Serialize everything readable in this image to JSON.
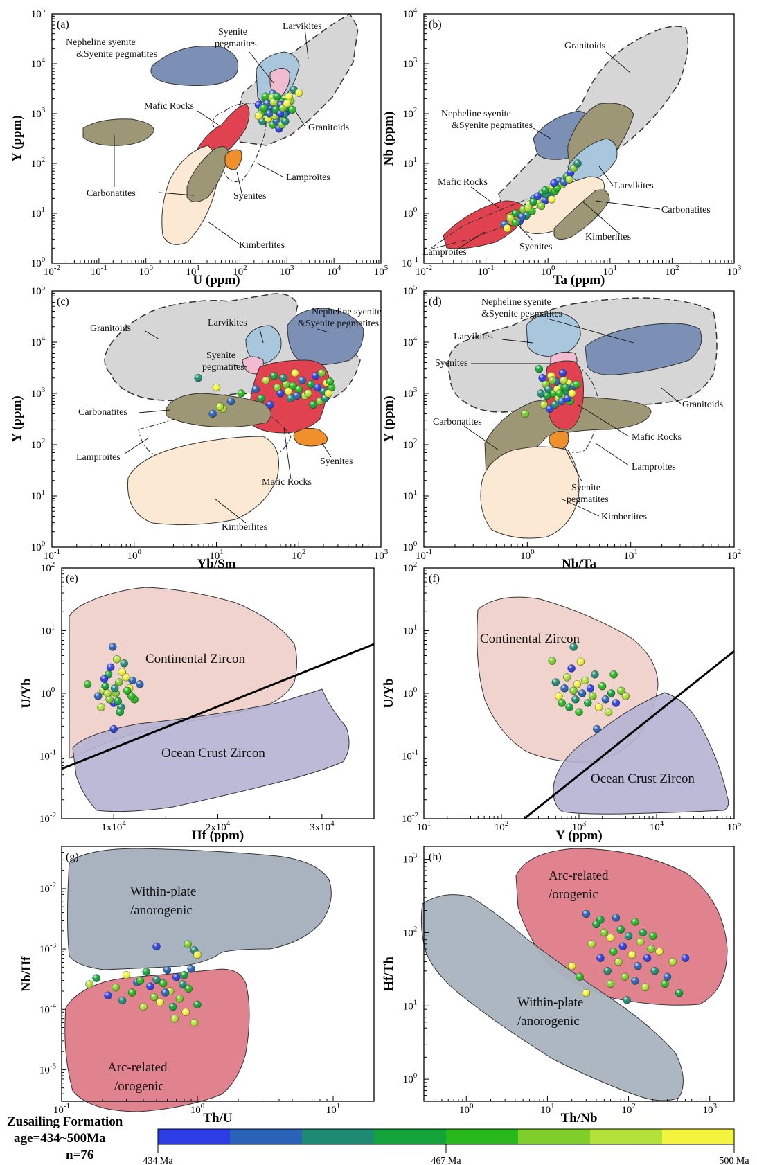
{
  "figure": {
    "legend": {
      "line1": "Zusailing Formation",
      "line2": "age=434~500Ma",
      "line3": "n=76",
      "colorbar_ticks": [
        "434 Ma",
        "467 Ma",
        "500 Ma"
      ],
      "colorbar_colors": [
        "#2c3de6",
        "#2a62b8",
        "#1f8a74",
        "#13a33a",
        "#28b81e",
        "#7fce2c",
        "#b4e03a",
        "#f4f33d"
      ]
    }
  },
  "chart_data": [
    {
      "panel": "(a)",
      "type": "scatter",
      "xscale": "log",
      "yscale": "log",
      "xlabel": "U (ppm)",
      "ylabel": "Y (ppm)",
      "xlim": [
        0.01,
        100000
      ],
      "ylim": [
        1,
        100000
      ],
      "xticklabels": [
        "10-2",
        "10-1",
        "100",
        "101",
        "102",
        "103",
        "104",
        "105"
      ],
      "yticklabels": [
        "100",
        "101",
        "102",
        "103",
        "104",
        "105"
      ],
      "regions": [
        "Nepheline syenite &Syenite pegmatites",
        "Syenite pegmatites",
        "Larvikites",
        "Mafic Rocks",
        "Granitoids",
        "Carbonatites",
        "Lamproites",
        "Syenites",
        "Kimberlites"
      ],
      "points": [
        [
          250,
          1500
        ],
        [
          300,
          1200
        ],
        [
          350,
          2000
        ],
        [
          400,
          1800
        ],
        [
          450,
          1000
        ],
        [
          500,
          2500
        ],
        [
          600,
          1500
        ],
        [
          700,
          900
        ],
        [
          800,
          1200
        ],
        [
          900,
          2000
        ],
        [
          300,
          700
        ],
        [
          400,
          800
        ],
        [
          500,
          600
        ],
        [
          600,
          700
        ],
        [
          700,
          1400
        ],
        [
          800,
          1700
        ],
        [
          1000,
          1100
        ],
        [
          1200,
          1800
        ],
        [
          1400,
          3000
        ],
        [
          1800,
          2600
        ],
        [
          350,
          2200
        ],
        [
          450,
          1300
        ],
        [
          550,
          900
        ],
        [
          650,
          1100
        ],
        [
          750,
          1500
        ],
        [
          850,
          800
        ],
        [
          950,
          1300
        ],
        [
          1100,
          2200
        ],
        [
          280,
          1000
        ],
        [
          380,
          1600
        ],
        [
          480,
          2100
        ],
        [
          580,
          1200
        ],
        [
          680,
          500
        ],
        [
          780,
          600
        ],
        [
          880,
          950
        ],
        [
          250,
          900
        ],
        [
          320,
          1300
        ],
        [
          420,
          1000
        ],
        [
          520,
          1700
        ],
        [
          620,
          2200
        ],
        [
          720,
          1000
        ],
        [
          820,
          1300
        ],
        [
          920,
          700
        ],
        [
          1000,
          1600
        ],
        [
          1300,
          1200
        ]
      ]
    },
    {
      "panel": "(b)",
      "type": "scatter",
      "xscale": "log",
      "yscale": "log",
      "xlabel": "Ta (ppm)",
      "ylabel": "Nb (ppm)",
      "xlim": [
        0.01,
        1000
      ],
      "ylim": [
        0.1,
        10000
      ],
      "xticklabels": [
        "10-2",
        "10-1",
        "100",
        "101",
        "102",
        "103"
      ],
      "yticklabels": [
        "10-1",
        "100",
        "101",
        "102",
        "103",
        "104"
      ],
      "regions": [
        "Granitoids",
        "Nepheline syenite &Syenite pegmatites",
        "Mafic Rocks",
        "Larvikites",
        "Carbonatites",
        "Kimberlites",
        "Syenites",
        "Lamproites"
      ],
      "points": [
        [
          0.2,
          0.6
        ],
        [
          0.25,
          0.8
        ],
        [
          0.3,
          1.0
        ],
        [
          0.35,
          0.7
        ],
        [
          0.4,
          1.2
        ],
        [
          0.45,
          0.9
        ],
        [
          0.5,
          1.5
        ],
        [
          0.55,
          1.1
        ],
        [
          0.6,
          2.0
        ],
        [
          0.7,
          1.6
        ],
        [
          0.8,
          2.5
        ],
        [
          0.9,
          1.8
        ],
        [
          1.0,
          3.0
        ],
        [
          1.1,
          2.2
        ],
        [
          1.2,
          3.5
        ],
        [
          1.3,
          2.8
        ],
        [
          1.5,
          4.5
        ],
        [
          1.7,
          3.8
        ],
        [
          2.0,
          5.5
        ],
        [
          2.3,
          6.5
        ],
        [
          2.6,
          8.0
        ],
        [
          3.0,
          10
        ],
        [
          0.22,
          0.5
        ],
        [
          0.3,
          0.65
        ],
        [
          0.38,
          0.85
        ],
        [
          0.48,
          1.3
        ],
        [
          0.58,
          1.7
        ],
        [
          0.68,
          2.2
        ],
        [
          0.78,
          1.4
        ],
        [
          0.95,
          2.4
        ],
        [
          1.15,
          1.9
        ],
        [
          1.4,
          3.2
        ],
        [
          1.8,
          4.2
        ],
        [
          2.2,
          4.8
        ],
        [
          0.9,
          2.9
        ],
        [
          1.25,
          4.0
        ]
      ]
    },
    {
      "panel": "(c)",
      "type": "scatter",
      "xscale": "log",
      "yscale": "log",
      "xlabel": "Yb/Sm",
      "ylabel": "Y (ppm)",
      "xlim": [
        0.1,
        1000
      ],
      "ylim": [
        1,
        100000
      ],
      "xticklabels": [
        "10-1",
        "100",
        "101",
        "102",
        "103"
      ],
      "yticklabels": [
        "100",
        "101",
        "102",
        "103",
        "104",
        "105"
      ],
      "regions": [
        "Granitoids",
        "Larvikites",
        "Nepheline syenite &Syenite pegmatites",
        "Syenite pegmatites",
        "Carbonatites",
        "Lamproites",
        "Mafic Rocks",
        "Syenites",
        "Kimberlites"
      ],
      "points": [
        [
          6,
          2000
        ],
        [
          10,
          1300
        ],
        [
          20,
          1000
        ],
        [
          30,
          1200
        ],
        [
          40,
          1800
        ],
        [
          50,
          2200
        ],
        [
          60,
          1000
        ],
        [
          70,
          1500
        ],
        [
          80,
          800
        ],
        [
          90,
          2500
        ],
        [
          100,
          1200
        ],
        [
          110,
          1800
        ],
        [
          120,
          900
        ],
        [
          140,
          1500
        ],
        [
          160,
          2200
        ],
        [
          180,
          700
        ],
        [
          200,
          1100
        ],
        [
          220,
          1600
        ],
        [
          250,
          1300
        ],
        [
          15,
          700
        ],
        [
          12,
          500
        ],
        [
          35,
          800
        ],
        [
          45,
          600
        ],
        [
          55,
          1300
        ],
        [
          65,
          2000
        ],
        [
          75,
          1100
        ],
        [
          85,
          1400
        ],
        [
          95,
          900
        ],
        [
          130,
          1000
        ],
        [
          150,
          600
        ],
        [
          170,
          1300
        ],
        [
          190,
          2500
        ],
        [
          210,
          800
        ],
        [
          230,
          1000
        ],
        [
          240,
          1700
        ],
        [
          9,
          400
        ],
        [
          11,
          550
        ]
      ]
    },
    {
      "panel": "(d)",
      "type": "scatter",
      "xscale": "log",
      "yscale": "log",
      "xlabel": "Nb/Ta",
      "ylabel": "Y (ppm)",
      "xlim": [
        0.1,
        100
      ],
      "ylim": [
        1,
        100000
      ],
      "xticklabels": [
        "10-1",
        "100",
        "101",
        "102"
      ],
      "yticklabels": [
        "100",
        "101",
        "102",
        "103",
        "104",
        "105"
      ],
      "regions": [
        "Nepheline syenite &Syenite pegmatites",
        "Larvikites",
        "Syenites",
        "Granitoids",
        "Carbonatites",
        "Mafic Rocks",
        "Lamproites",
        "Syenite pegmatites",
        "Kimberlites"
      ],
      "points": [
        [
          1.3,
          3000
        ],
        [
          1.4,
          2000
        ],
        [
          1.5,
          1500
        ],
        [
          1.6,
          1200
        ],
        [
          1.7,
          2200
        ],
        [
          1.8,
          1000
        ],
        [
          1.9,
          1700
        ],
        [
          2.0,
          800
        ],
        [
          2.1,
          1300
        ],
        [
          2.2,
          2500
        ],
        [
          2.3,
          900
        ],
        [
          2.4,
          1100
        ],
        [
          2.5,
          1600
        ],
        [
          2.6,
          700
        ],
        [
          2.8,
          1400
        ],
        [
          1.45,
          600
        ],
        [
          1.55,
          900
        ],
        [
          1.65,
          500
        ],
        [
          1.75,
          1800
        ],
        [
          1.85,
          600
        ],
        [
          1.95,
          1200
        ],
        [
          2.05,
          1000
        ],
        [
          2.15,
          700
        ],
        [
          2.25,
          1800
        ],
        [
          2.35,
          1300
        ],
        [
          2.45,
          800
        ],
        [
          0.95,
          400
        ],
        [
          1.35,
          1000
        ],
        [
          2.7,
          1000
        ],
        [
          3.0,
          1500
        ]
      ]
    },
    {
      "panel": "(e)",
      "type": "scatter",
      "xscale": "linear",
      "yscale": "log",
      "xlabel": "Hf (ppm)",
      "ylabel": "U/Yb",
      "xlim": [
        5000,
        35000
      ],
      "ylim": [
        0.01,
        100
      ],
      "xticklabels": [
        "1x104",
        "2x104",
        "3x104"
      ],
      "yticklabels": [
        "10-2",
        "10-1",
        "100",
        "101",
        "102"
      ],
      "regions": [
        "Continental Zircon",
        "Ocean Crust Zircon"
      ],
      "points": [
        [
          7500,
          1.4
        ],
        [
          8500,
          0.9
        ],
        [
          9000,
          1.1
        ],
        [
          9500,
          2.0
        ],
        [
          10000,
          0.7
        ],
        [
          10500,
          1.5
        ],
        [
          11000,
          3.0
        ],
        [
          11500,
          1.2
        ],
        [
          12000,
          0.8
        ],
        [
          12500,
          1.4
        ],
        [
          8800,
          0.6
        ],
        [
          9200,
          1.3
        ],
        [
          9700,
          2.6
        ],
        [
          10200,
          1.0
        ],
        [
          10700,
          0.6
        ],
        [
          11200,
          1.8
        ],
        [
          11700,
          0.9
        ],
        [
          9900,
          5.5
        ],
        [
          10300,
          3.5
        ],
        [
          10600,
          0.5
        ],
        [
          9100,
          1.7
        ],
        [
          9600,
          0.8
        ],
        [
          10100,
          1.2
        ],
        [
          10800,
          2.2
        ],
        [
          11300,
          1.1
        ],
        [
          11800,
          1.6
        ],
        [
          9400,
          1.0
        ],
        [
          10400,
          0.75
        ],
        [
          10000,
          0.27
        ]
      ]
    },
    {
      "panel": "(f)",
      "type": "scatter",
      "xscale": "log",
      "yscale": "log",
      "xlabel": "Y (ppm)",
      "ylabel": "U/Yb",
      "xlim": [
        10,
        100000
      ],
      "ylim": [
        0.01,
        100
      ],
      "xticklabels": [
        "101",
        "102",
        "103",
        "104",
        "105"
      ],
      "yticklabels": [
        "10-2",
        "10-1",
        "100",
        "101",
        "102"
      ],
      "regions": [
        "Continental Zircon",
        "Ocean Crust Zircon"
      ],
      "points": [
        [
          450,
          3.3
        ],
        [
          500,
          1.5
        ],
        [
          550,
          0.9
        ],
        [
          600,
          0.7
        ],
        [
          650,
          1.2
        ],
        [
          700,
          1.8
        ],
        [
          750,
          0.6
        ],
        [
          800,
          2.5
        ],
        [
          850,
          1.1
        ],
        [
          900,
          0.8
        ],
        [
          950,
          1.4
        ],
        [
          1000,
          0.5
        ],
        [
          1100,
          1.0
        ],
        [
          1200,
          1.6
        ],
        [
          1300,
          0.7
        ],
        [
          1400,
          1.2
        ],
        [
          1500,
          0.9
        ],
        [
          1600,
          2.0
        ],
        [
          1800,
          0.6
        ],
        [
          2000,
          1.3
        ],
        [
          2200,
          0.8
        ],
        [
          2400,
          0.5
        ],
        [
          2600,
          1.0
        ],
        [
          3000,
          0.7
        ],
        [
          3500,
          1.1
        ],
        [
          850,
          5.5
        ],
        [
          1050,
          3.2
        ],
        [
          2800,
          2.0
        ],
        [
          1700,
          0.27
        ],
        [
          4000,
          0.9
        ]
      ]
    },
    {
      "panel": "(g)",
      "type": "scatter",
      "xscale": "log",
      "yscale": "log",
      "xlabel": "Th/U",
      "ylabel": "Nb/Hf",
      "xlim": [
        0.1,
        20
      ],
      "ylim": [
        3e-06,
        0.05
      ],
      "xticklabels": [
        "10-1",
        "100",
        "101"
      ],
      "yticklabels": [
        "10-5",
        "10-4",
        "10-3",
        "10-2"
      ],
      "regions": [
        "Within-plate /anorogenic",
        "Arc-related /orogenic"
      ],
      "points": [
        [
          0.16,
          0.00026
        ],
        [
          0.18,
          0.00033
        ],
        [
          0.22,
          0.00017
        ],
        [
          0.25,
          0.00023
        ],
        [
          0.28,
          0.00014
        ],
        [
          0.3,
          0.00037
        ],
        [
          0.33,
          0.00019
        ],
        [
          0.36,
          0.00028
        ],
        [
          0.4,
          0.00011
        ],
        [
          0.42,
          0.00042
        ],
        [
          0.45,
          0.00024
        ],
        [
          0.48,
          0.00016
        ],
        [
          0.5,
          0.00031
        ],
        [
          0.53,
          0.00013
        ],
        [
          0.56,
          0.00027
        ],
        [
          0.6,
          0.00045
        ],
        [
          0.63,
          0.0002
        ],
        [
          0.66,
          0.00011
        ],
        [
          0.7,
          0.00034
        ],
        [
          0.74,
          0.00015
        ],
        [
          0.78,
          0.00026
        ],
        [
          0.82,
          9e-05
        ],
        [
          0.86,
          0.00022
        ],
        [
          0.9,
          0.00047
        ],
        [
          0.95,
          6e-05
        ],
        [
          1.0,
          0.00012
        ],
        [
          0.5,
          0.0011
        ],
        [
          0.85,
          0.0012
        ],
        [
          0.95,
          0.00095
        ],
        [
          1.0,
          0.0008
        ],
        [
          0.38,
          0.0003
        ],
        [
          0.58,
          0.00019
        ],
        [
          0.68,
          7e-05
        ],
        [
          0.8,
          0.00037
        ]
      ]
    },
    {
      "panel": "(h)",
      "type": "scatter",
      "xscale": "log",
      "yscale": "log",
      "xlabel": "Th/Nb",
      "ylabel": "Hf/Th",
      "xlim": [
        0.3,
        2000
      ],
      "ylim": [
        0.5,
        1500
      ],
      "xticklabels": [
        "100",
        "101",
        "102",
        "103"
      ],
      "yticklabels": [
        "100",
        "101",
        "102",
        "103"
      ],
      "regions": [
        "Arc-related /orogenic",
        "Within-plate /anorogenic"
      ],
      "points": [
        [
          20,
          35
        ],
        [
          25,
          25
        ],
        [
          30,
          180
        ],
        [
          35,
          70
        ],
        [
          40,
          130
        ],
        [
          45,
          45
        ],
        [
          50,
          100
        ],
        [
          55,
          30
        ],
        [
          60,
          85
        ],
        [
          65,
          55
        ],
        [
          70,
          160
        ],
        [
          75,
          40
        ],
        [
          80,
          110
        ],
        [
          85,
          65
        ],
        [
          90,
          25
        ],
        [
          100,
          90
        ],
        [
          110,
          50
        ],
        [
          120,
          140
        ],
        [
          130,
          35
        ],
        [
          140,
          75
        ],
        [
          150,
          100
        ],
        [
          170,
          45
        ],
        [
          190,
          60
        ],
        [
          210,
          30
        ],
        [
          240,
          55
        ],
        [
          280,
          20
        ],
        [
          300,
          25
        ],
        [
          350,
          40
        ],
        [
          420,
          15
        ],
        [
          500,
          45
        ],
        [
          60,
          20
        ],
        [
          95,
          12
        ],
        [
          30,
          15
        ],
        [
          200,
          90
        ],
        [
          120,
          22
        ],
        [
          160,
          18
        ],
        [
          45,
          150
        ]
      ]
    }
  ]
}
